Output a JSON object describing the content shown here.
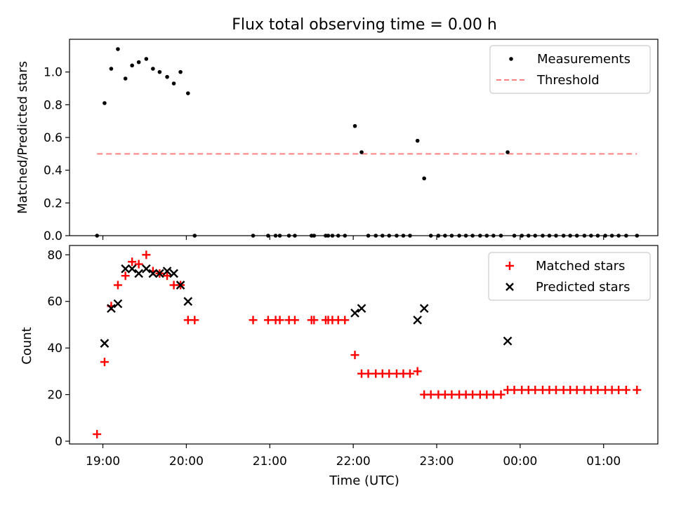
{
  "figure": {
    "title": "Flux total observing time = 0.00 h"
  },
  "chart_data": [
    {
      "type": "scatter",
      "panel": "top",
      "title": "Flux total observing time = 0.00 h",
      "xlabel": "",
      "ylabel": "Matched/Predicted stars",
      "ylim": [
        0,
        1.2
      ],
      "yticks": [
        0.0,
        0.2,
        0.4,
        0.6,
        0.8,
        1.0
      ],
      "ytick_labels": [
        "0.0",
        "0.2",
        "0.4",
        "0.6",
        "0.8",
        "1.0"
      ],
      "xlim_hours": [
        18.6,
        25.65
      ],
      "legend_position": "top-right",
      "grid": false,
      "series": [
        {
          "name": "Measurements",
          "kind": "dots",
          "color": "#000000",
          "x": [
            18.93,
            19.02,
            19.1,
            19.18,
            19.27,
            19.35,
            19.43,
            19.52,
            19.6,
            19.68,
            19.77,
            19.85,
            19.93,
            20.02,
            20.1,
            20.8,
            20.98,
            21.07,
            21.12,
            21.23,
            21.3,
            21.5,
            21.53,
            21.67,
            21.7,
            21.75,
            21.82,
            21.9,
            22.02,
            22.1,
            22.18,
            22.27,
            22.35,
            22.43,
            22.52,
            22.6,
            22.68,
            22.77,
            22.85,
            22.93,
            23.02,
            23.1,
            23.18,
            23.27,
            23.35,
            23.43,
            23.52,
            23.6,
            23.68,
            23.77,
            23.85,
            23.93,
            24.02,
            24.1,
            24.18,
            24.27,
            24.35,
            24.43,
            24.52,
            24.6,
            24.68,
            24.77,
            24.85,
            24.93,
            25.02,
            25.1,
            25.18,
            25.27,
            25.4
          ],
          "y": [
            0.0,
            0.81,
            1.02,
            1.14,
            0.96,
            1.04,
            1.06,
            1.08,
            1.02,
            1.0,
            0.97,
            0.93,
            1.0,
            0.87,
            0.0,
            0.0,
            0.0,
            0.0,
            0.0,
            0.0,
            0.0,
            0.0,
            0.0,
            0.0,
            0.0,
            0.0,
            0.0,
            0.0,
            0.67,
            0.51,
            0.0,
            0.0,
            0.0,
            0.0,
            0.0,
            0.0,
            0.0,
            0.58,
            0.35,
            0.0,
            0.0,
            0.0,
            0.0,
            0.0,
            0.0,
            0.0,
            0.0,
            0.0,
            0.0,
            0.0,
            0.51,
            0.0,
            0.0,
            0.0,
            0.0,
            0.0,
            0.0,
            0.0,
            0.0,
            0.0,
            0.0,
            0.0,
            0.0,
            0.0,
            0.0,
            0.0,
            0.0,
            0.0,
            0.0
          ]
        },
        {
          "name": "Threshold",
          "kind": "dashed-line",
          "color": "#ff8080",
          "x": [
            18.93,
            25.4
          ],
          "y": [
            0.5,
            0.5
          ]
        }
      ]
    },
    {
      "type": "scatter",
      "panel": "bottom",
      "xlabel": "Time (UTC)",
      "ylabel": "Count",
      "ylim": [
        -1.2,
        84
      ],
      "yticks": [
        0,
        20,
        40,
        60,
        80
      ],
      "ytick_labels": [
        "0",
        "20",
        "40",
        "60",
        "80"
      ],
      "xlim_hours": [
        18.6,
        25.65
      ],
      "xticks_hours": [
        19,
        20,
        21,
        22,
        23,
        24,
        25
      ],
      "xtick_labels": [
        "19:00",
        "20:00",
        "21:00",
        "22:00",
        "23:00",
        "00:00",
        "01:00"
      ],
      "legend_position": "top-right",
      "grid": false,
      "series": [
        {
          "name": "Matched stars",
          "kind": "plus",
          "color": "#ff0000",
          "x": [
            18.93,
            19.02,
            19.1,
            19.18,
            19.27,
            19.35,
            19.43,
            19.52,
            19.6,
            19.68,
            19.77,
            19.85,
            19.93,
            20.02,
            20.1,
            20.8,
            20.98,
            21.07,
            21.12,
            21.23,
            21.3,
            21.5,
            21.53,
            21.67,
            21.7,
            21.75,
            21.82,
            21.9,
            22.02,
            22.1,
            22.18,
            22.27,
            22.35,
            22.43,
            22.52,
            22.6,
            22.68,
            22.77,
            22.85,
            22.93,
            23.02,
            23.1,
            23.18,
            23.27,
            23.35,
            23.43,
            23.52,
            23.6,
            23.68,
            23.77,
            23.85,
            23.93,
            24.02,
            24.1,
            24.18,
            24.27,
            24.35,
            24.43,
            24.52,
            24.6,
            24.68,
            24.77,
            24.85,
            24.93,
            25.02,
            25.1,
            25.18,
            25.27,
            25.4
          ],
          "y": [
            3,
            34,
            58,
            67,
            71,
            77,
            76,
            80,
            73,
            72,
            71,
            67,
            67,
            52,
            52,
            52,
            52,
            52,
            52,
            52,
            52,
            52,
            52,
            52,
            52,
            52,
            52,
            52,
            37,
            29,
            29,
            29,
            29,
            29,
            29,
            29,
            29,
            30,
            20,
            20,
            20,
            20,
            20,
            20,
            20,
            20,
            20,
            20,
            20,
            20,
            22,
            22,
            22,
            22,
            22,
            22,
            22,
            22,
            22,
            22,
            22,
            22,
            22,
            22,
            22,
            22,
            22,
            22,
            22
          ]
        },
        {
          "name": "Predicted stars",
          "kind": "x",
          "color": "#000000",
          "x": [
            19.02,
            19.1,
            19.18,
            19.27,
            19.35,
            19.43,
            19.52,
            19.6,
            19.68,
            19.77,
            19.85,
            19.93,
            20.02,
            22.02,
            22.1,
            22.77,
            22.85,
            23.85
          ],
          "y": [
            42,
            57,
            59,
            74,
            74,
            72,
            74,
            72,
            72,
            73,
            72,
            67,
            60,
            55,
            57,
            52,
            57,
            43
          ]
        }
      ]
    }
  ]
}
